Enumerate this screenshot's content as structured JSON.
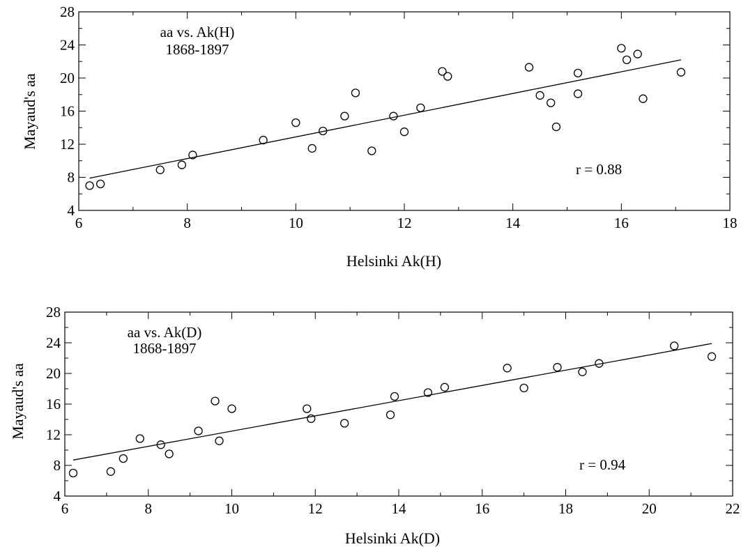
{
  "chart_data": [
    {
      "type": "scatter",
      "xlabel": "Helsinki Ak(H)",
      "ylabel": "Mayaud's aa",
      "xlim": [
        6,
        18
      ],
      "ylim": [
        4,
        28
      ],
      "x_ticks": [
        6,
        8,
        10,
        12,
        14,
        16,
        18
      ],
      "y_ticks": [
        4,
        8,
        12,
        16,
        20,
        24,
        28
      ],
      "annotation_lines": [
        "aa vs. Ak(H)",
        "1868-1897"
      ],
      "correlation_label": "r = 0.88",
      "points": [
        [
          6.2,
          7.0
        ],
        [
          6.4,
          7.2
        ],
        [
          7.5,
          8.9
        ],
        [
          7.9,
          9.5
        ],
        [
          8.1,
          10.7
        ],
        [
          9.4,
          12.5
        ],
        [
          10.0,
          14.6
        ],
        [
          10.3,
          11.5
        ],
        [
          10.5,
          13.6
        ],
        [
          10.9,
          15.4
        ],
        [
          11.1,
          18.2
        ],
        [
          11.4,
          11.2
        ],
        [
          11.8,
          15.4
        ],
        [
          12.0,
          13.5
        ],
        [
          12.3,
          16.4
        ],
        [
          12.7,
          20.8
        ],
        [
          12.8,
          20.2
        ],
        [
          14.3,
          21.3
        ],
        [
          14.5,
          17.9
        ],
        [
          14.7,
          17.0
        ],
        [
          14.8,
          14.1
        ],
        [
          15.2,
          20.6
        ],
        [
          15.2,
          18.1
        ],
        [
          16.0,
          23.6
        ],
        [
          16.1,
          22.2
        ],
        [
          16.3,
          22.9
        ],
        [
          16.4,
          17.5
        ],
        [
          17.1,
          20.7
        ]
      ],
      "fit_line": [
        [
          6.2,
          7.9
        ],
        [
          17.1,
          22.2
        ]
      ]
    },
    {
      "type": "scatter",
      "xlabel": "Helsinki Ak(D)",
      "ylabel": "Mayaud's aa",
      "xlim": [
        6,
        22
      ],
      "ylim": [
        4,
        28
      ],
      "x_ticks": [
        6,
        8,
        10,
        12,
        14,
        16,
        18,
        20,
        22
      ],
      "y_ticks": [
        4,
        8,
        12,
        16,
        20,
        24,
        28
      ],
      "annotation_lines": [
        "aa vs. Ak(D)",
        "1868-1897"
      ],
      "correlation_label": "r = 0.94",
      "points": [
        [
          6.2,
          7.0
        ],
        [
          7.1,
          7.2
        ],
        [
          7.4,
          8.9
        ],
        [
          7.8,
          11.5
        ],
        [
          8.3,
          10.7
        ],
        [
          8.5,
          9.5
        ],
        [
          9.2,
          12.5
        ],
        [
          9.6,
          16.4
        ],
        [
          9.7,
          11.2
        ],
        [
          10.0,
          15.4
        ],
        [
          11.8,
          15.4
        ],
        [
          11.9,
          14.1
        ],
        [
          12.7,
          13.5
        ],
        [
          13.8,
          14.6
        ],
        [
          13.9,
          17.0
        ],
        [
          14.7,
          17.5
        ],
        [
          15.1,
          18.2
        ],
        [
          16.6,
          20.7
        ],
        [
          17.0,
          18.1
        ],
        [
          17.8,
          20.8
        ],
        [
          18.4,
          20.2
        ],
        [
          18.8,
          21.3
        ],
        [
          20.6,
          23.6
        ],
        [
          21.5,
          22.2
        ]
      ],
      "fit_line": [
        [
          6.2,
          8.7
        ],
        [
          21.5,
          23.9
        ]
      ]
    }
  ]
}
